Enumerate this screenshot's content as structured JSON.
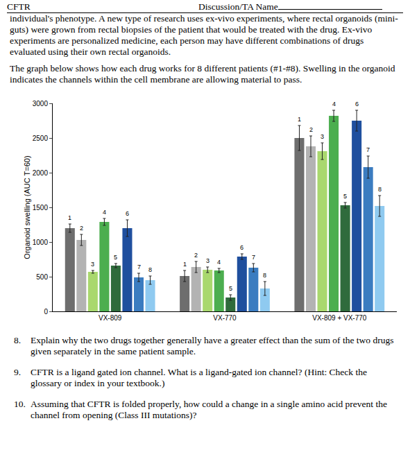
{
  "header": {
    "left": "CFTR",
    "right": "Discussion/TA Name"
  },
  "paragraphs": [
    "individual's phenotype. A new type of research uses ex-vivo experiments, where rectal organoids (mini-guts) were grown from rectal biopsies of the patient that would be treated with the drug. Ex-vivo experiments are personalized medicine, each person may have different combinations of drugs evaluated using their own rectal organoids.",
    "The graph below shows how each drug works for 8 different patients (#1-#8). Swelling in the organoid indicates the channels within the cell membrane are allowing material to pass."
  ],
  "chart_data": {
    "type": "bar",
    "y_label": "Organoid swelling (AUC T=60)",
    "categories": [
      "VX-809",
      "VX-770",
      "VX-809 + VX-770"
    ],
    "series": [
      {
        "name": "1",
        "color": "#6e6e6e",
        "values": [
          1200,
          510,
          2500
        ],
        "errors": [
          60,
          80,
          180
        ]
      },
      {
        "name": "2",
        "color": "#b3b3b3",
        "values": [
          1030,
          640,
          2380
        ],
        "errors": [
          80,
          80,
          150
        ]
      },
      {
        "name": "3",
        "color": "#a9d86e",
        "values": [
          570,
          600,
          2310
        ],
        "errors": [
          20,
          40,
          120
        ]
      },
      {
        "name": "4",
        "color": "#4cae4f",
        "values": [
          1290,
          590,
          2820
        ],
        "errors": [
          50,
          30,
          80
        ]
      },
      {
        "name": "5",
        "color": "#2f6b3c",
        "values": [
          660,
          200,
          1530
        ],
        "errors": [
          30,
          40,
          40
        ]
      },
      {
        "name": "6",
        "color": "#1f4f9e",
        "values": [
          1200,
          790,
          2750
        ],
        "errors": [
          120,
          40,
          150
        ]
      },
      {
        "name": "7",
        "color": "#3b7cc0",
        "values": [
          490,
          630,
          2080
        ],
        "errors": [
          60,
          60,
          160
        ]
      },
      {
        "name": "8",
        "color": "#8fcaf0",
        "values": [
          450,
          330,
          1520
        ],
        "errors": [
          60,
          100,
          150
        ]
      }
    ],
    "ylim": [
      0,
      3000
    ],
    "yticks": [
      0,
      500,
      1000,
      1500,
      2000,
      2500,
      3000
    ],
    "grid": false
  },
  "questions": [
    {
      "number": "8.",
      "text": "Explain why the two drugs together generally have a greater effect than the sum of the two drugs given separately in the same patient sample."
    },
    {
      "number": "9.",
      "text": "CFTR is a ligand gated ion channel. What is a ligand-gated ion channel? (Hint: Check the glossary or index in your textbook.)"
    },
    {
      "number": "10.",
      "text": "Assuming that CFTR is folded properly, how could a change in a single amino acid prevent the channel from opening (Class III mutations)?"
    }
  ]
}
